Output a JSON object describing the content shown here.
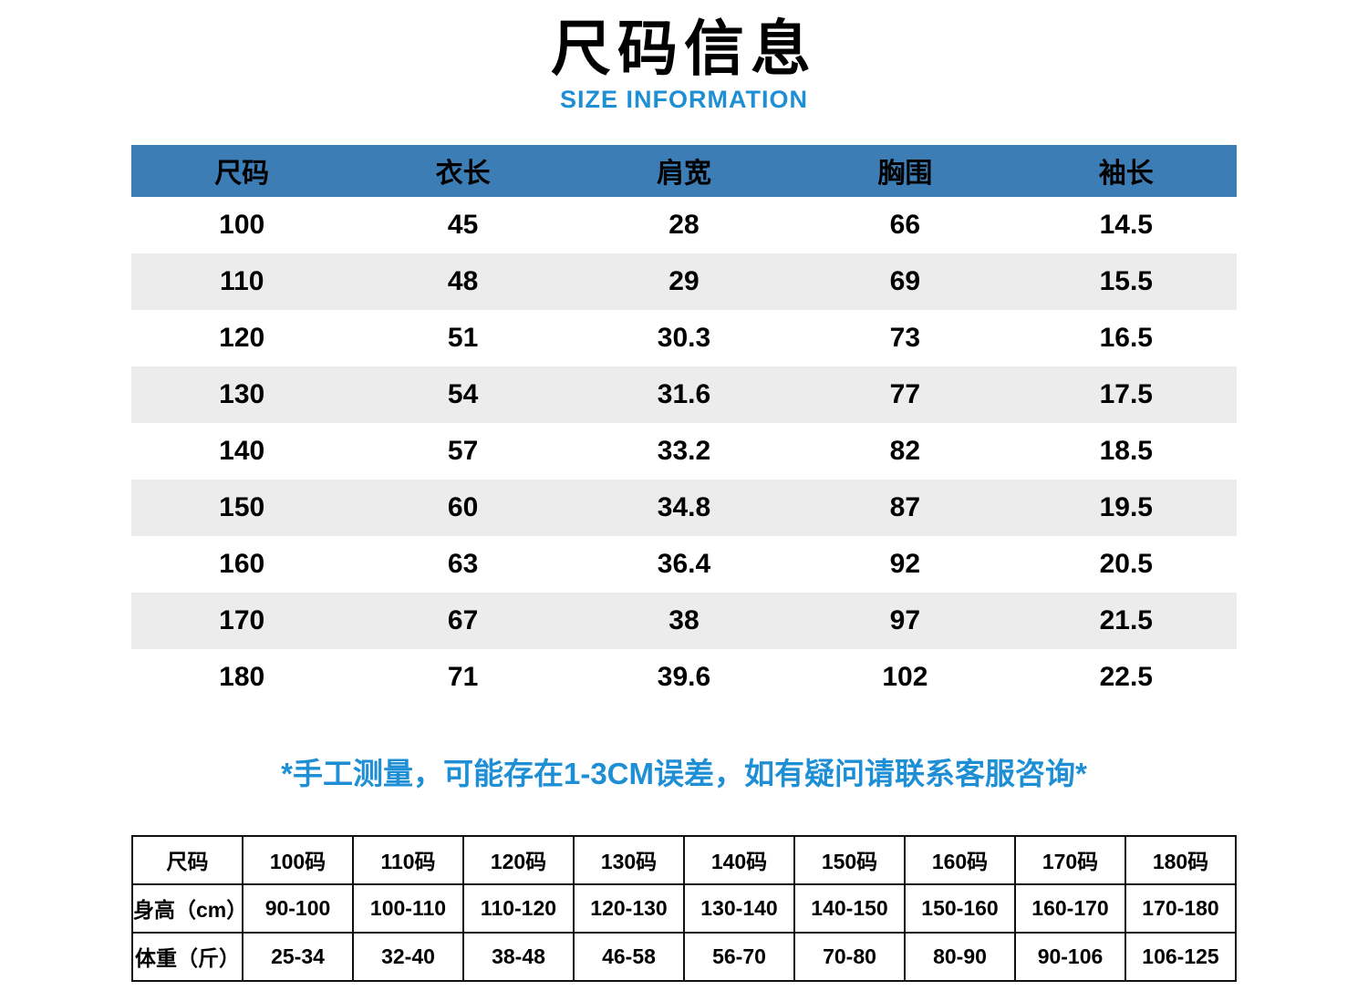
{
  "page": {
    "title": "尺码信息",
    "subtitle": "SIZE INFORMATION",
    "note": "*手工测量，可能存在1-3CM误差，如有疑问请联系客服咨询*"
  },
  "colors": {
    "table_header_bg": "#3d7db6",
    "subtitle_blue": "#1e8fd5",
    "note_blue": "#1e8fd5",
    "row_alt_bg": "#ececec",
    "border_black": "#111111"
  },
  "chart_data": [
    {
      "type": "table",
      "name": "size_measurements",
      "columns": [
        "尺码",
        "衣长",
        "肩宽",
        "胸围",
        "袖长"
      ],
      "rows": [
        [
          "100",
          "45",
          "28",
          "66",
          "14.5"
        ],
        [
          "110",
          "48",
          "29",
          "69",
          "15.5"
        ],
        [
          "120",
          "51",
          "30.3",
          "73",
          "16.5"
        ],
        [
          "130",
          "54",
          "31.6",
          "77",
          "17.5"
        ],
        [
          "140",
          "57",
          "33.2",
          "82",
          "18.5"
        ],
        [
          "150",
          "60",
          "34.8",
          "87",
          "19.5"
        ],
        [
          "160",
          "63",
          "36.4",
          "92",
          "20.5"
        ],
        [
          "170",
          "67",
          "38",
          "97",
          "21.5"
        ],
        [
          "180",
          "71",
          "39.6",
          "102",
          "22.5"
        ]
      ]
    },
    {
      "type": "table",
      "name": "height_weight_fit",
      "rows": [
        [
          "尺码",
          "100码",
          "110码",
          "120码",
          "130码",
          "140码",
          "150码",
          "160码",
          "170码",
          "180码"
        ],
        [
          "身高（cm）",
          "90-100",
          "100-110",
          "110-120",
          "120-130",
          "130-140",
          "140-150",
          "150-160",
          "160-170",
          "170-180"
        ],
        [
          "体重（斤）",
          "25-34",
          "32-40",
          "38-48",
          "46-58",
          "56-70",
          "70-80",
          "80-90",
          "90-106",
          "106-125"
        ]
      ]
    }
  ]
}
